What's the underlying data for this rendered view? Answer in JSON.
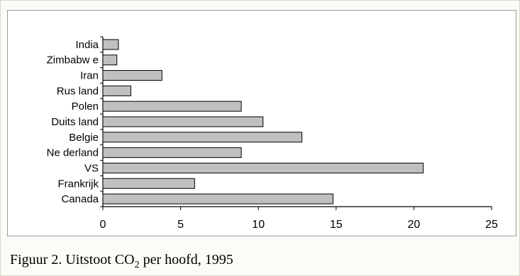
{
  "chart_data": {
    "type": "bar",
    "orientation": "horizontal",
    "categories": [
      "India",
      "Zimbabw e",
      "Iran",
      "Rus land",
      "Polen",
      "Duits land",
      "Belgie",
      "Ne derland",
      "VS",
      "Frankrijk",
      "Canada"
    ],
    "values": [
      1.0,
      0.9,
      3.8,
      1.8,
      8.9,
      10.3,
      12.8,
      8.9,
      20.6,
      5.9,
      14.8
    ],
    "xlim": [
      0,
      25
    ],
    "xticks": [
      0,
      5,
      10,
      15,
      20,
      25
    ],
    "xtick_labels": [
      "0",
      "5",
      "10",
      "15",
      "20",
      "25"
    ],
    "grid": false,
    "legend": "none",
    "colors": {
      "bar_fill": "#c0c0c0",
      "bar_stroke": "#000000"
    }
  },
  "caption": {
    "prefix": "Figuur 2. Uitstoot CO",
    "subscript": "2",
    "suffix": " per hoofd, 1995"
  }
}
